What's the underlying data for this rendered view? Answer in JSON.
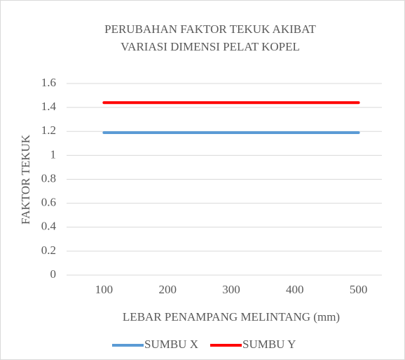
{
  "chart_data": {
    "type": "line",
    "title": [
      "PERUBAHAN FAKTOR TEKUK AKIBAT",
      "VARIASI DIMENSI PELAT KOPEL"
    ],
    "xlabel": "LEBAR PENAMPANG MELINTANG (mm)",
    "ylabel": "FAKTOR TEKUK",
    "categories": [
      "100",
      "200",
      "300",
      "400",
      "500"
    ],
    "series": [
      {
        "name": "SUMBU X",
        "color": "#5b9bd5",
        "values": [
          1.19,
          1.19,
          1.19,
          1.19,
          1.19
        ]
      },
      {
        "name": "SUMBU Y",
        "color": "#ff0000",
        "values": [
          1.44,
          1.44,
          1.44,
          1.44,
          1.44
        ]
      }
    ],
    "ylim": [
      0,
      1.6
    ],
    "yticks": [
      0,
      0.2,
      0.4,
      0.6,
      0.8,
      1,
      1.2,
      1.4,
      1.6
    ],
    "grid": true,
    "legend": "bottom"
  }
}
